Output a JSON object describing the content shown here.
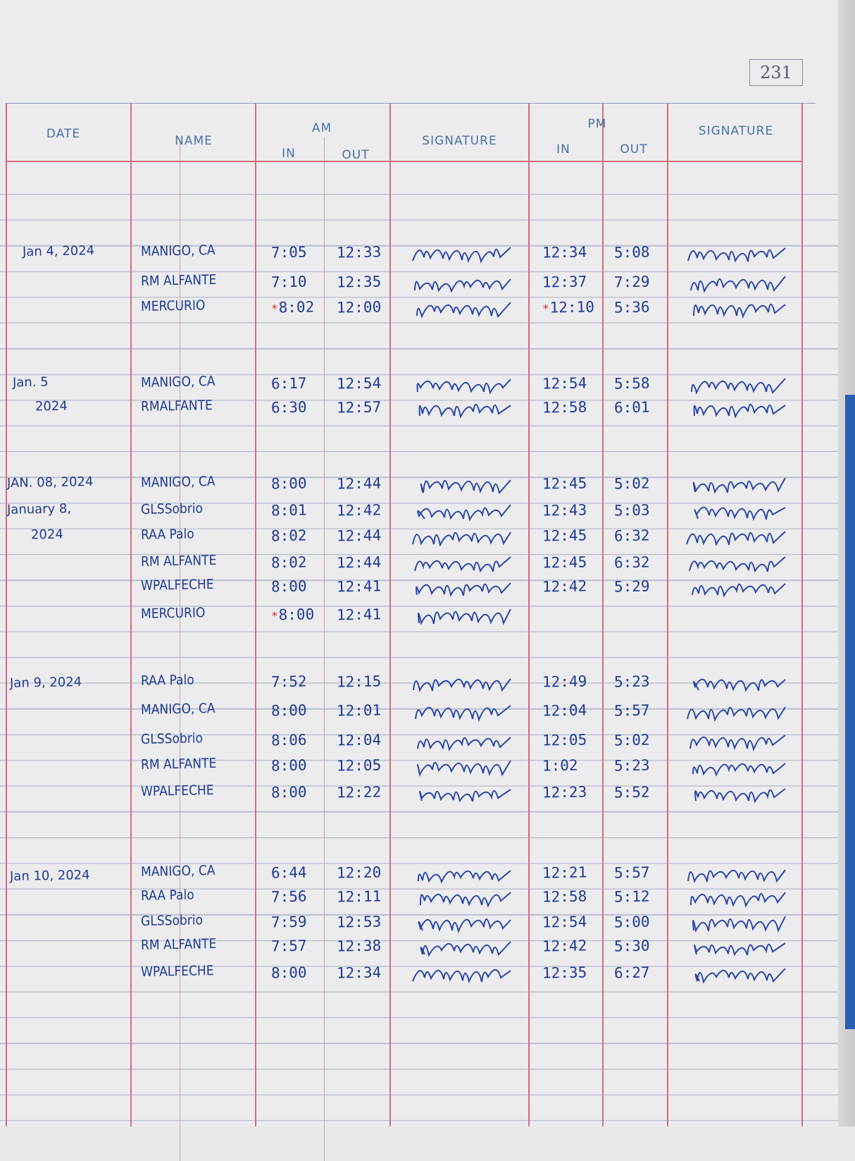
{
  "page_number": "231",
  "headers": {
    "date": "DATE",
    "name": "NAME",
    "am": "AM",
    "am_in": "IN",
    "am_out": "OUT",
    "signature_am": "SIGNATURE",
    "pm": "PM",
    "pm_in": "IN",
    "pm_out": "OUT",
    "signature_pm": "SIGNATURE"
  },
  "colors": {
    "ink": "#1f3a94",
    "red_rule": "#d86a7a",
    "late_mark": "#d2322d"
  },
  "groups": [
    {
      "date_lines": [
        "Jan 4, 2024"
      ],
      "entries": [
        {
          "name": "MANIGO, CA",
          "am_in": "7:05",
          "am_out": "12:33",
          "pm_in": "12:34",
          "pm_out": "5:08"
        },
        {
          "name": "RM ALFANTE",
          "am_in": "7:10",
          "am_out": "12:35",
          "pm_in": "12:37",
          "pm_out": "7:29"
        },
        {
          "name": "MERCURIO",
          "am_in": "8:02",
          "am_out": "12:00",
          "pm_in": "12:10",
          "pm_out": "5:36",
          "late_am": true,
          "late_pm": true
        }
      ]
    },
    {
      "date_lines": [
        "Jan. 5",
        "2024"
      ],
      "entries": [
        {
          "name": "MANIGO, CA",
          "am_in": "6:17",
          "am_out": "12:54",
          "pm_in": "12:54",
          "pm_out": "5:58"
        },
        {
          "name": "RMALFANTE",
          "am_in": "6:30",
          "am_out": "12:57",
          "pm_in": "12:58",
          "pm_out": "6:01"
        }
      ]
    },
    {
      "date_lines": [
        "JAN. 08, 2024",
        "January 8,",
        "2024"
      ],
      "entries": [
        {
          "name": "MANIGO, CA",
          "am_in": "8:00",
          "am_out": "12:44",
          "pm_in": "12:45",
          "pm_out": "5:02"
        },
        {
          "name": "GLSSobrio",
          "am_in": "8:01",
          "am_out": "12:42",
          "pm_in": "12:43",
          "pm_out": "5:03"
        },
        {
          "name": "RAA Palo",
          "am_in": "8:02",
          "am_out": "12:44",
          "pm_in": "12:45",
          "pm_out": "6:32"
        },
        {
          "name": "RM ALFANTE",
          "am_in": "8:02",
          "am_out": "12:44",
          "pm_in": "12:45",
          "pm_out": "6:32"
        },
        {
          "name": "WPALFECHE",
          "am_in": "8:00",
          "am_out": "12:41",
          "pm_in": "12:42",
          "pm_out": "5:29"
        },
        {
          "name": "MERCURIO",
          "am_in": "8:00",
          "am_out": "12:41",
          "pm_in": "",
          "pm_out": "",
          "late_am": true
        }
      ]
    },
    {
      "date_lines": [
        "Jan 9, 2024"
      ],
      "entries": [
        {
          "name": "RAA Palo",
          "am_in": "7:52",
          "am_out": "12:15",
          "pm_in": "12:49",
          "pm_out": "5:23"
        },
        {
          "name": "MANIGO, CA",
          "am_in": "8:00",
          "am_out": "12:01",
          "pm_in": "12:04",
          "pm_out": "5:57"
        },
        {
          "name": "GLSSobrio",
          "am_in": "8:06",
          "am_out": "12:04",
          "pm_in": "12:05",
          "pm_out": "5:02"
        },
        {
          "name": "RM ALFANTE",
          "am_in": "8:00",
          "am_out": "12:05",
          "pm_in": "1:02",
          "pm_out": "5:23"
        },
        {
          "name": "WPALFECHE",
          "am_in": "8:00",
          "am_out": "12:22",
          "pm_in": "12:23",
          "pm_out": "5:52"
        }
      ]
    },
    {
      "date_lines": [
        "Jan 10, 2024"
      ],
      "entries": [
        {
          "name": "MANIGO, CA",
          "am_in": "6:44",
          "am_out": "12:20",
          "pm_in": "12:21",
          "pm_out": "5:57"
        },
        {
          "name": "RAA Palo",
          "am_in": "7:56",
          "am_out": "12:11",
          "pm_in": "12:58",
          "pm_out": "5:12"
        },
        {
          "name": "GLSSobrio",
          "am_in": "7:59",
          "am_out": "12:53",
          "pm_in": "12:54",
          "pm_out": "5:00"
        },
        {
          "name": "RM ALFANTE",
          "am_in": "7:57",
          "am_out": "12:38",
          "pm_in": "12:42",
          "pm_out": "5:30"
        },
        {
          "name": "WPALFECHE",
          "am_in": "8:00",
          "am_out": "12:34",
          "pm_in": "12:35",
          "pm_out": "6:27"
        }
      ]
    }
  ]
}
